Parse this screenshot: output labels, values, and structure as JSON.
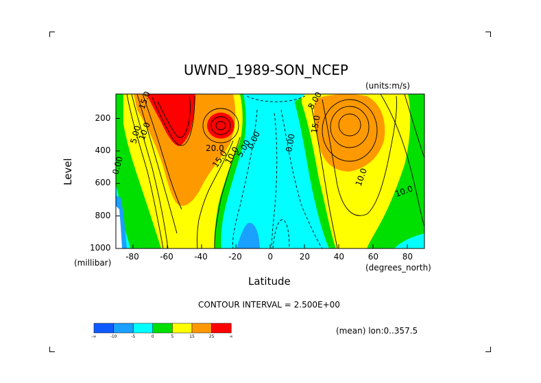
{
  "chart_data": {
    "type": "contour",
    "title": "UWND_1989-SON_NCEP",
    "units_label": "(units:m/s)",
    "xlabel": "Latitude",
    "ylabel": "Level",
    "x_units": "(degrees_north)",
    "y_units": "(millibar)",
    "xlim": [
      -90,
      90
    ],
    "ylim": [
      1000,
      50
    ],
    "y_inverted": true,
    "x_ticks": [
      -80,
      -60,
      -40,
      -20,
      0,
      20,
      40,
      60,
      80
    ],
    "y_ticks": [
      200,
      400,
      600,
      800,
      1000
    ],
    "contour_interval_text": "CONTOUR INTERVAL = 2.500E+00",
    "footer_text": "(mean) lon:0..357.5",
    "color_levels": [
      {
        "label": "-∞",
        "color": "#0f5aff"
      },
      {
        "label": "-10",
        "color": "#1aa0ff"
      },
      {
        "label": "-5",
        "color": "#00ffff"
      },
      {
        "label": "0",
        "color": "#00e000"
      },
      {
        "label": "5",
        "color": "#ffff00"
      },
      {
        "label": "15",
        "color": "#ff9900"
      },
      {
        "label": "25",
        "color": "#ff0000"
      },
      {
        "label": "∞",
        "color": ""
      }
    ],
    "jets": [
      {
        "lat": -55,
        "level": 120,
        "max_ms": 30
      },
      {
        "lat": -30,
        "level": 200,
        "max_ms": 28
      },
      {
        "lat": 42,
        "level": 220,
        "max_ms": 24
      }
    ],
    "contour_labels": [
      "15.0",
      "10.0",
      "5.00",
      "0.00",
      "20.0",
      "15.0",
      "10.0",
      "5.00",
      "0.00",
      "0.00",
      "10.0",
      "15.0",
      "10.0",
      "5.00"
    ]
  }
}
